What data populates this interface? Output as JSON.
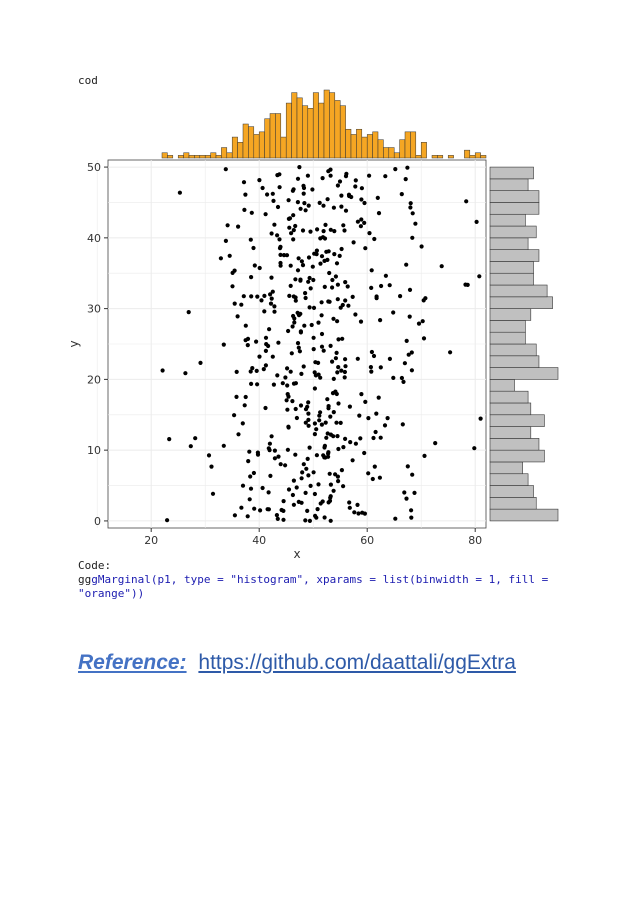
{
  "header_label": "cod",
  "code": {
    "heading": "Code:",
    "prefix": "gg",
    "body": "gMarginal(p1, type = \"histogram\", xparams = list(binwidth = 1, fill = \"orange\"))"
  },
  "reference": {
    "label": "Reference:",
    "url": "https://github.com/daattali/ggExtra"
  },
  "colors": {
    "marginal_x_fill": "#f5a623",
    "marginal_y_fill": "#c0c0c0",
    "point": "#000000",
    "grid": "#ebebeb",
    "reference_label": "#4472c4"
  },
  "chart_data": {
    "type": "scatter",
    "title": "",
    "xlabel": "x",
    "ylabel": "y",
    "xlim": [
      12,
      82
    ],
    "ylim": [
      -1,
      51
    ],
    "x_ticks": [
      20,
      40,
      60,
      80
    ],
    "y_ticks": [
      0,
      10,
      20,
      30,
      40,
      50
    ],
    "grid": true,
    "seed": 7,
    "n_points": 500,
    "x_mean": 50,
    "x_sd": 10,
    "y_range": [
      0,
      50
    ],
    "marginal_x": {
      "type": "histogram",
      "binwidth": 1,
      "fill": "orange"
    },
    "marginal_y": {
      "type": "histogram",
      "fill": "grey"
    }
  }
}
